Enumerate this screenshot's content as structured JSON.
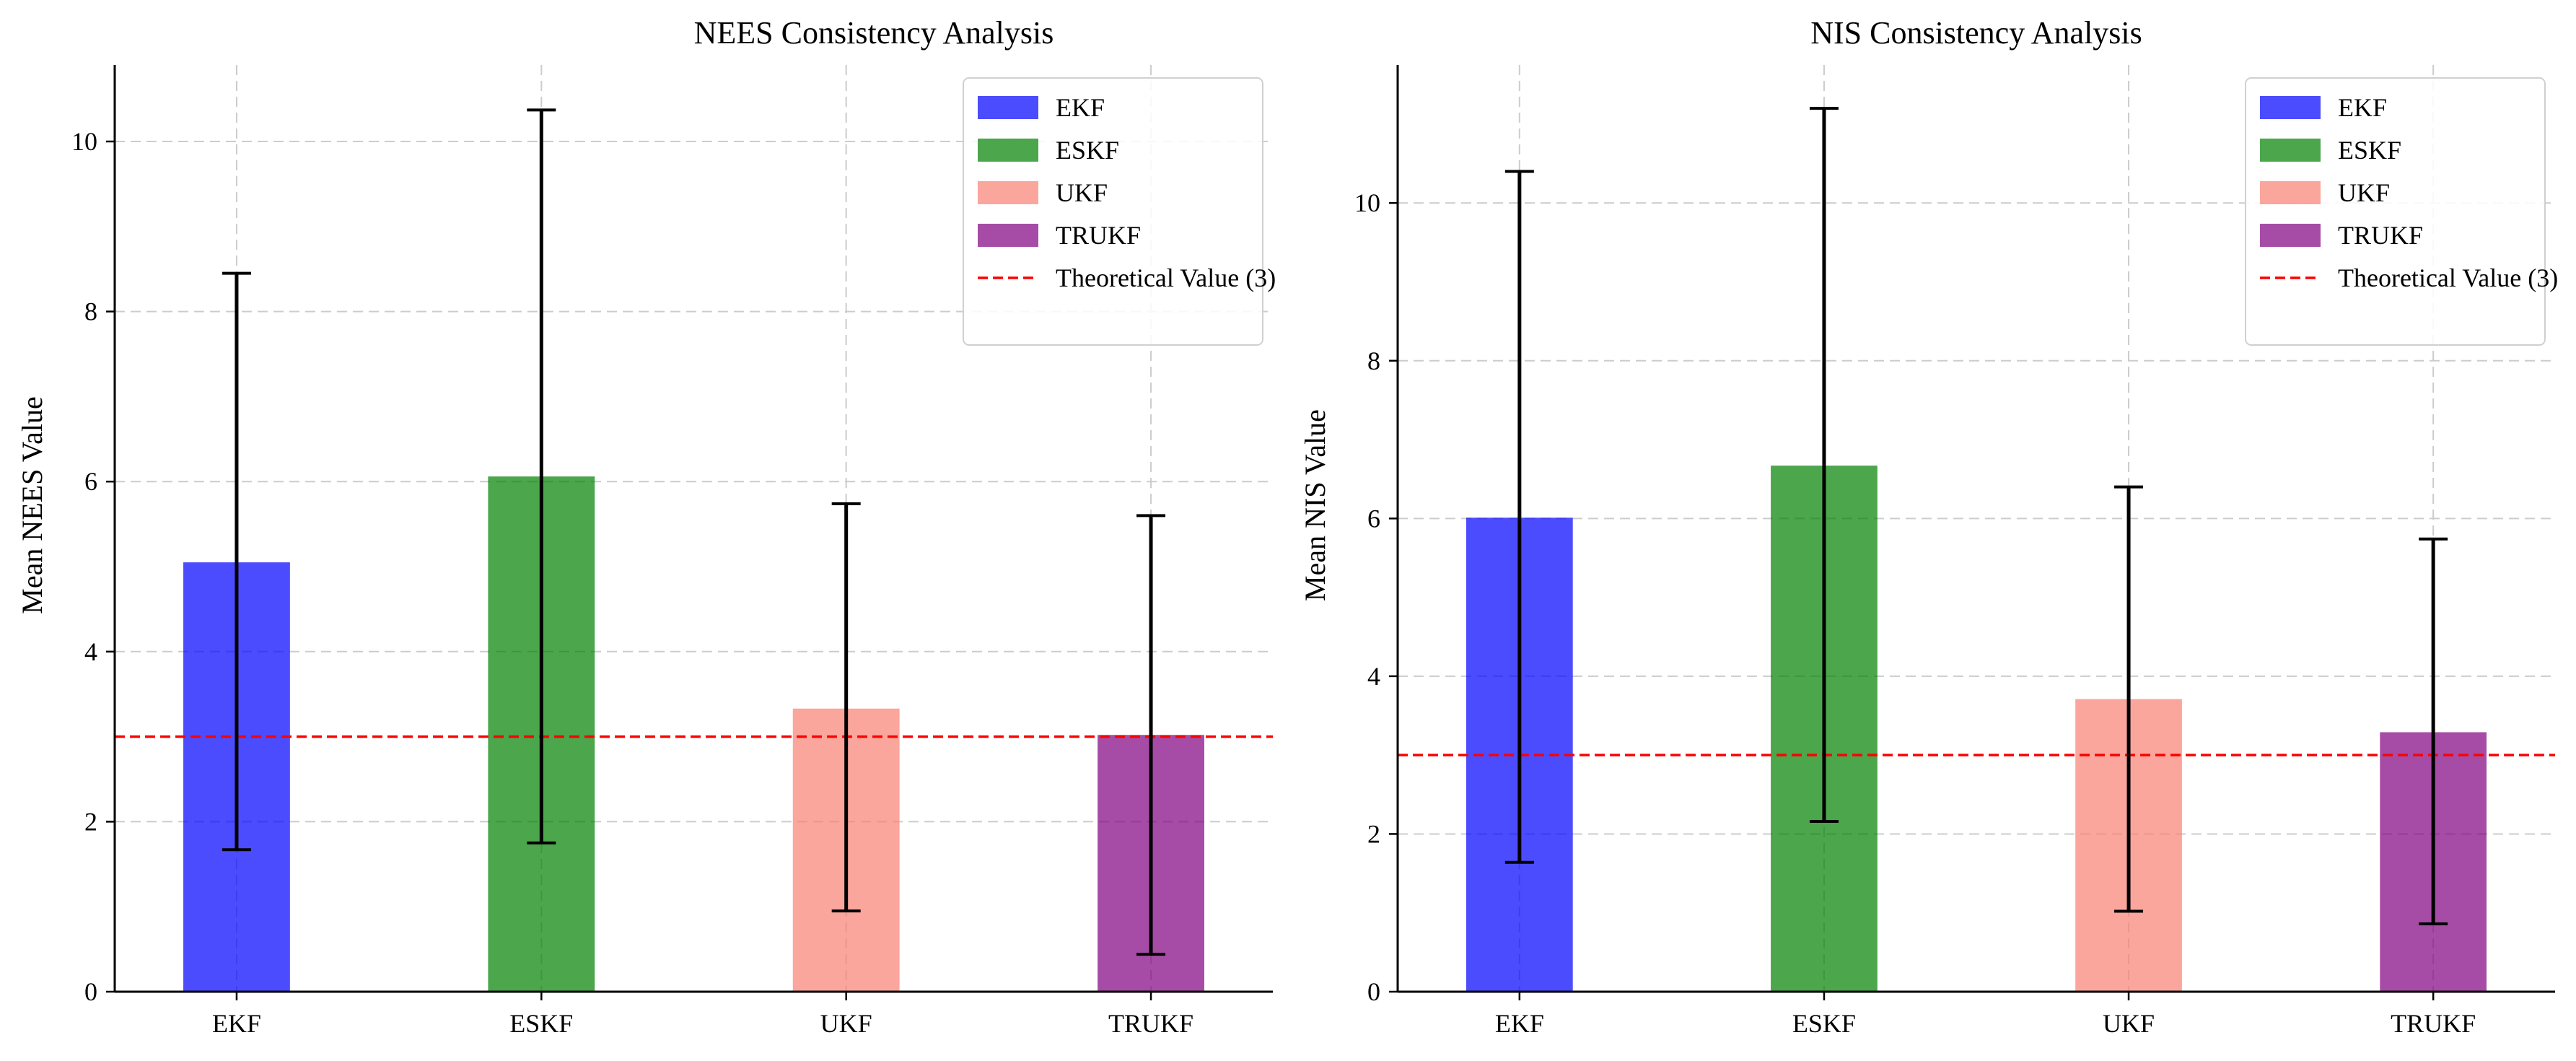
{
  "colors": {
    "EKF": "#0000ff",
    "ESKF": "#008000",
    "UKF": "#fa8072",
    "TRUKF": "#800080",
    "theoretical_line": "#ff0000",
    "error_bar": "#000000",
    "grid": "#cccccc"
  },
  "chart_data": [
    {
      "type": "bar",
      "title": "NEES Consistency Analysis",
      "xlabel": "",
      "ylabel": "Mean NEES Value",
      "categories": [
        "EKF",
        "ESKF",
        "UKF",
        "TRUKF"
      ],
      "values": [
        5.05,
        6.06,
        3.33,
        3.02
      ],
      "error_low": [
        1.67,
        1.75,
        0.95,
        0.44
      ],
      "error_high": [
        8.45,
        10.37,
        5.74,
        5.6
      ],
      "ylim": [
        0,
        10.9
      ],
      "yticks": [
        0,
        2,
        4,
        6,
        8,
        10
      ],
      "reference_line": {
        "value": 3,
        "label": "Theoretical Value (3)"
      },
      "legend": [
        "EKF",
        "ESKF",
        "UKF",
        "TRUKF",
        "Theoretical Value (3)"
      ],
      "legend_position": "top-right",
      "grid": true
    },
    {
      "type": "bar",
      "title": "NIS Consistency Analysis",
      "xlabel": "",
      "ylabel": "Mean NIS Value",
      "categories": [
        "EKF",
        "ESKF",
        "UKF",
        "TRUKF"
      ],
      "values": [
        6.01,
        6.67,
        3.71,
        3.29
      ],
      "error_low": [
        1.64,
        2.16,
        1.02,
        0.86
      ],
      "error_high": [
        10.4,
        11.2,
        6.4,
        5.74
      ],
      "ylim": [
        0,
        11.75
      ],
      "yticks": [
        0,
        2,
        4,
        6,
        8,
        10
      ],
      "reference_line": {
        "value": 3,
        "label": "Theoretical Value (3)"
      },
      "legend": [
        "EKF",
        "ESKF",
        "UKF",
        "TRUKF",
        "Theoretical Value (3)"
      ],
      "legend_position": "top-right",
      "grid": true
    }
  ]
}
